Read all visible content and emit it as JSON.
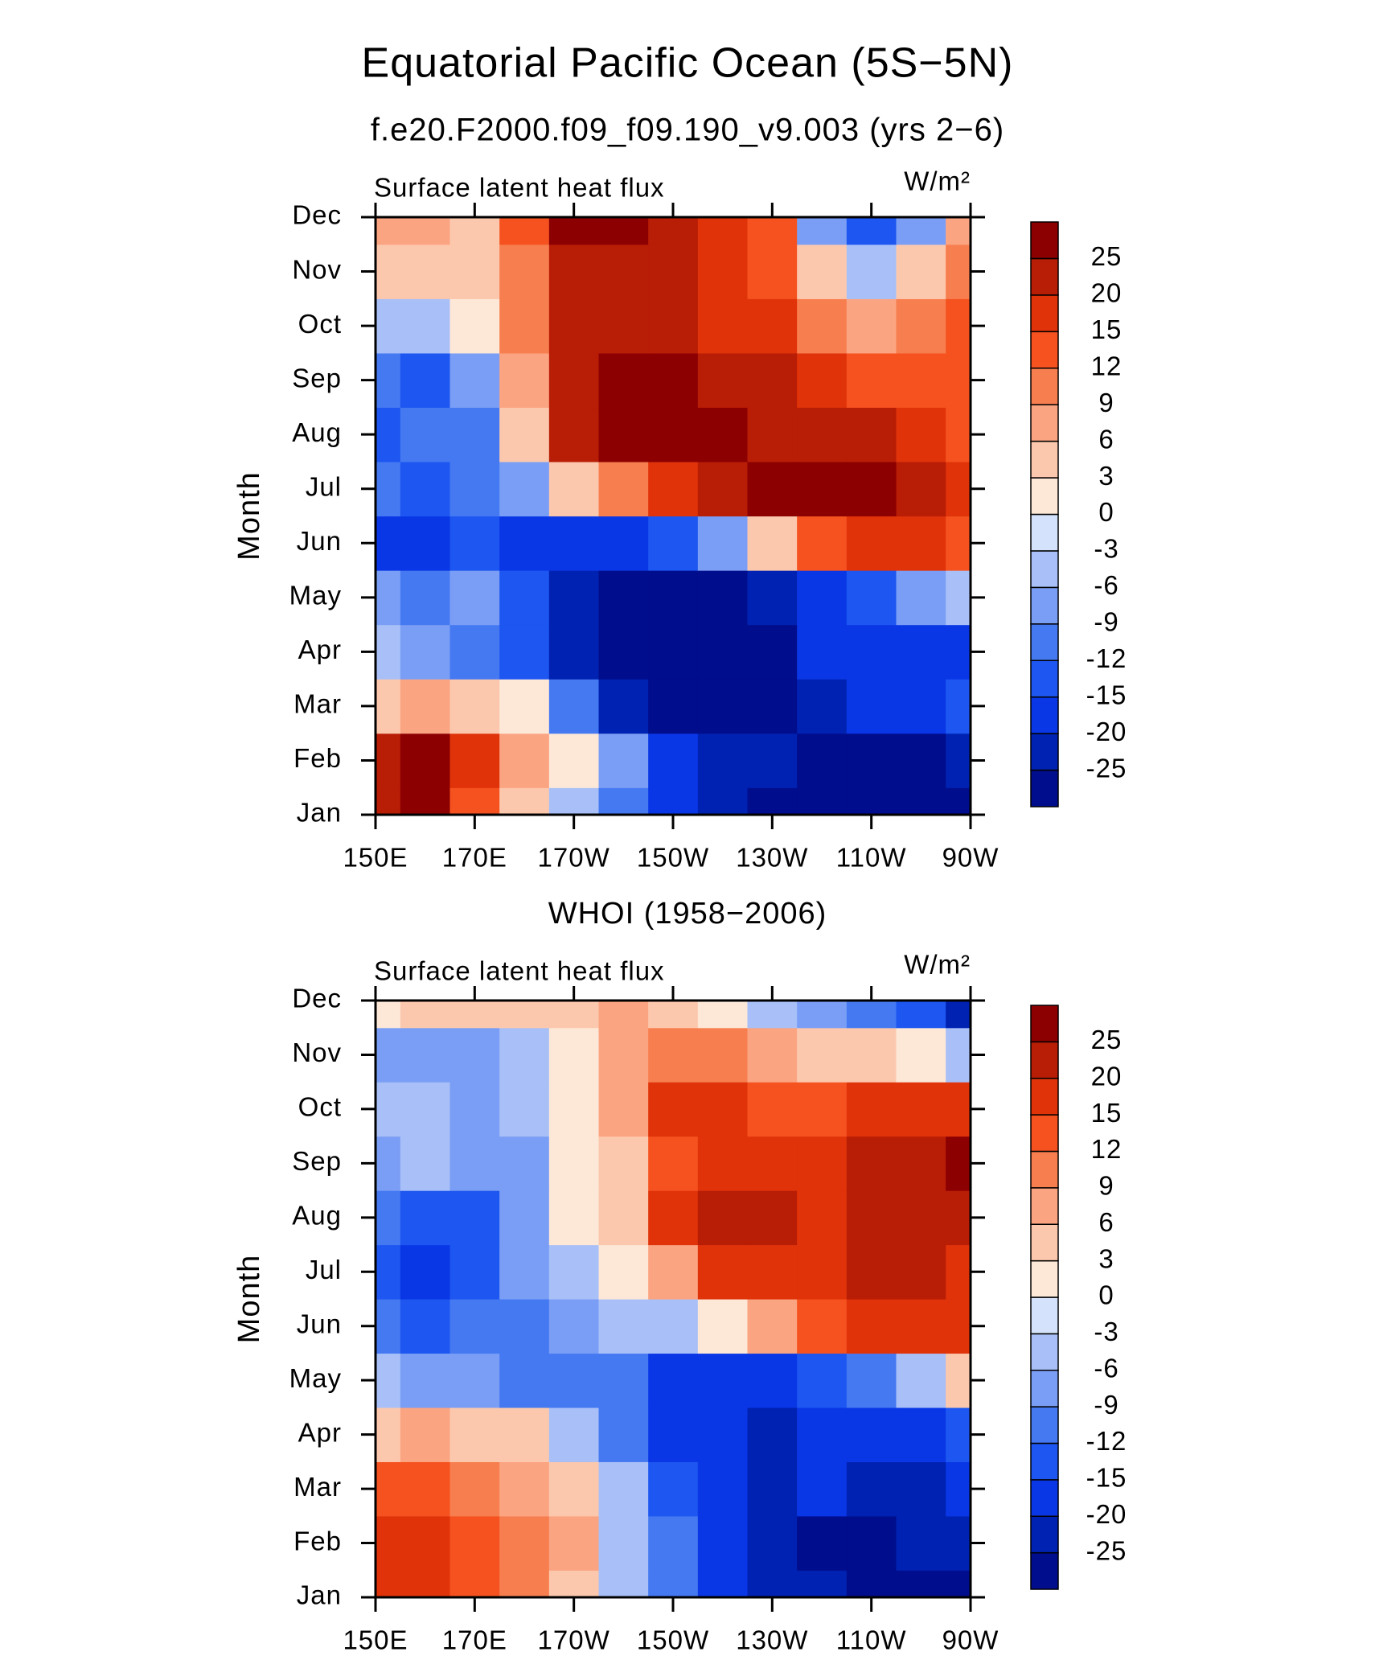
{
  "title": "Equatorial Pacific Ocean (5S−5N)",
  "chart_data": [
    {
      "type": "heatmap",
      "subtitle": "f.e20.F2000.f09_f09.190_v9.003 (yrs 2−6)",
      "field_label": "Surface latent heat flux",
      "units": "W/m²",
      "ylabel": "Month",
      "x": [
        150,
        160,
        170,
        180,
        190,
        200,
        210,
        220,
        230,
        240,
        250,
        260,
        270
      ],
      "categories": [
        "Jan",
        "Feb",
        "Mar",
        "Apr",
        "May",
        "Jun",
        "Jul",
        "Aug",
        "Sep",
        "Oct",
        "Nov",
        "Dec"
      ],
      "xlim": [
        150,
        270
      ],
      "xticks": [
        {
          "value": 150,
          "label": "150E"
        },
        {
          "value": 170,
          "label": "170E"
        },
        {
          "value": 190,
          "label": "170W"
        },
        {
          "value": 210,
          "label": "150W"
        },
        {
          "value": 230,
          "label": "130W"
        },
        {
          "value": 250,
          "label": "110W"
        },
        {
          "value": 270,
          "label": "90W"
        }
      ],
      "levels": [
        -25,
        -20,
        -15,
        -12,
        -9,
        -6,
        -3,
        0,
        3,
        6,
        9,
        12,
        15,
        20,
        25
      ],
      "colors": [
        "#000d8c",
        "#0022b2",
        "#0a37e6",
        "#1d56f0",
        "#4579f2",
        "#7a9ef5",
        "#a8c0f7",
        "#d4e3fb",
        "#fde8d8",
        "#fcc8ad",
        "#fba482",
        "#f77e4f",
        "#f5521f",
        "#e0330a",
        "#b81d06",
        "#8c0002"
      ],
      "values": [
        [
          22,
          27,
          13,
          4,
          -4,
          -10,
          -17,
          -22,
          -28,
          -28,
          -28,
          -28,
          -28
        ],
        [
          22,
          27,
          17,
          7,
          1,
          -7,
          -17,
          -22,
          -22,
          -28,
          -28,
          -28,
          -22
        ],
        [
          4,
          7,
          4,
          1,
          -10,
          -22,
          -28,
          -28,
          -28,
          -22,
          -17,
          -17,
          -13
        ],
        [
          -4,
          -7,
          -10,
          -13,
          -22,
          -28,
          -28,
          -28,
          -28,
          -17,
          -17,
          -17,
          -17
        ],
        [
          -7,
          -10,
          -7,
          -13,
          -22,
          -28,
          -28,
          -28,
          -22,
          -17,
          -13,
          -7,
          -4
        ],
        [
          -17,
          -17,
          -13,
          -17,
          -17,
          -17,
          -13,
          -7,
          4,
          13,
          17,
          17,
          13
        ],
        [
          -10,
          -13,
          -10,
          -7,
          4,
          10,
          17,
          22,
          27,
          27,
          27,
          22,
          17
        ],
        [
          -13,
          -10,
          -10,
          4,
          22,
          27,
          27,
          27,
          22,
          22,
          22,
          17,
          13
        ],
        [
          -10,
          -13,
          -7,
          7,
          22,
          27,
          27,
          22,
          22,
          17,
          13,
          13,
          13
        ],
        [
          -4,
          -4,
          1,
          10,
          22,
          22,
          22,
          17,
          17,
          10,
          7,
          10,
          13
        ],
        [
          4,
          4,
          4,
          10,
          22,
          22,
          22,
          17,
          13,
          4,
          -4,
          4,
          10
        ],
        [
          7,
          7,
          4,
          13,
          27,
          27,
          22,
          17,
          13,
          -7,
          -13,
          -7,
          7
        ]
      ]
    },
    {
      "type": "heatmap",
      "subtitle": "WHOI (1958−2006)",
      "field_label": "Surface latent heat flux",
      "units": "W/m²",
      "ylabel": "Month",
      "x": [
        150,
        160,
        170,
        180,
        190,
        200,
        210,
        220,
        230,
        240,
        250,
        260,
        270
      ],
      "categories": [
        "Jan",
        "Feb",
        "Mar",
        "Apr",
        "May",
        "Jun",
        "Jul",
        "Aug",
        "Sep",
        "Oct",
        "Nov",
        "Dec"
      ],
      "xlim": [
        150,
        270
      ],
      "xticks": [
        {
          "value": 150,
          "label": "150E"
        },
        {
          "value": 170,
          "label": "170E"
        },
        {
          "value": 190,
          "label": "170W"
        },
        {
          "value": 210,
          "label": "150W"
        },
        {
          "value": 230,
          "label": "130W"
        },
        {
          "value": 250,
          "label": "110W"
        },
        {
          "value": 270,
          "label": "90W"
        }
      ],
      "levels": [
        -25,
        -20,
        -15,
        -12,
        -9,
        -6,
        -3,
        0,
        3,
        6,
        9,
        12,
        15,
        20,
        25
      ],
      "colors": [
        "#000d8c",
        "#0022b2",
        "#0a37e6",
        "#1d56f0",
        "#4579f2",
        "#7a9ef5",
        "#a8c0f7",
        "#d4e3fb",
        "#fde8d8",
        "#fcc8ad",
        "#fba482",
        "#f77e4f",
        "#f5521f",
        "#e0330a",
        "#b81d06",
        "#8c0002"
      ],
      "values": [
        [
          17,
          17,
          13,
          10,
          4,
          -4,
          -10,
          -17,
          -22,
          -22,
          -28,
          -28,
          -28
        ],
        [
          17,
          17,
          13,
          10,
          7,
          -4,
          -10,
          -17,
          -22,
          -28,
          -28,
          -22,
          -22
        ],
        [
          13,
          13,
          10,
          7,
          4,
          -4,
          -13,
          -17,
          -22,
          -17,
          -22,
          -22,
          -17
        ],
        [
          4,
          7,
          4,
          4,
          -4,
          -10,
          -17,
          -17,
          -22,
          -17,
          -17,
          -17,
          -13
        ],
        [
          -4,
          -7,
          -7,
          -10,
          -10,
          -10,
          -17,
          -17,
          -17,
          -13,
          -10,
          -4,
          4
        ],
        [
          -10,
          -13,
          -10,
          -10,
          -7,
          -4,
          -4,
          1,
          7,
          13,
          17,
          17,
          17
        ],
        [
          -13,
          -17,
          -13,
          -7,
          -4,
          1,
          7,
          17,
          17,
          17,
          22,
          22,
          17
        ],
        [
          -10,
          -13,
          -13,
          -7,
          1,
          4,
          17,
          22,
          22,
          17,
          22,
          22,
          22
        ],
        [
          -7,
          -4,
          -7,
          -7,
          1,
          4,
          13,
          17,
          17,
          17,
          22,
          22,
          27
        ],
        [
          -4,
          -4,
          -7,
          -4,
          1,
          7,
          17,
          17,
          13,
          13,
          17,
          17,
          17
        ],
        [
          -7,
          -7,
          -7,
          -4,
          1,
          7,
          10,
          10,
          7,
          4,
          4,
          1,
          -4
        ],
        [
          1,
          4,
          4,
          4,
          4,
          7,
          4,
          1,
          -4,
          -7,
          -10,
          -13,
          -22
        ]
      ]
    }
  ]
}
